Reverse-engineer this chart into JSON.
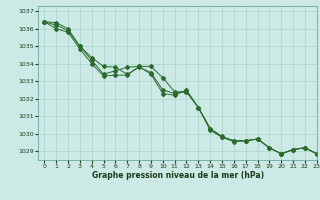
{
  "xlabel": "Graphe pression niveau de la mer (hPa)",
  "xlim": [
    -0.5,
    23
  ],
  "ylim": [
    1028.5,
    1037.3
  ],
  "yticks": [
    1029,
    1030,
    1031,
    1032,
    1033,
    1034,
    1035,
    1036,
    1037
  ],
  "xticks": [
    0,
    1,
    2,
    3,
    4,
    5,
    6,
    7,
    8,
    9,
    10,
    11,
    12,
    13,
    14,
    15,
    16,
    17,
    18,
    19,
    20,
    21,
    22,
    23
  ],
  "bg_color": "#cce9e5",
  "grid_color": "#aad4cf",
  "line_color": "#2d6a2d",
  "line1": [
    1036.4,
    1036.35,
    1036.0,
    1035.0,
    1034.2,
    1033.4,
    1033.6,
    1033.8,
    1033.85,
    1033.4,
    1032.3,
    1032.2,
    1032.5,
    1031.5,
    1030.2,
    1029.8,
    1029.55,
    1029.6,
    1029.7,
    1029.2,
    1028.85,
    1029.1,
    1029.2,
    1028.85
  ],
  "line2": [
    1036.4,
    1036.2,
    1035.9,
    1035.0,
    1034.35,
    1033.85,
    1033.8,
    1033.4,
    1033.8,
    1033.5,
    1032.5,
    1032.3,
    1032.4,
    1031.5,
    1030.3,
    1029.85,
    1029.6,
    1029.6,
    1029.7,
    1029.2,
    1028.85,
    1029.1,
    1029.2,
    1028.85
  ],
  "line3": [
    1036.4,
    1036.0,
    1035.8,
    1034.85,
    1034.0,
    1033.3,
    1033.35,
    1033.35,
    1033.85,
    1033.85,
    1033.2,
    1032.4,
    1032.4,
    1031.5,
    1030.3,
    1029.8,
    1029.6,
    1029.6,
    1029.7,
    1029.2,
    1028.85,
    1029.1,
    1029.2,
    1028.85
  ]
}
